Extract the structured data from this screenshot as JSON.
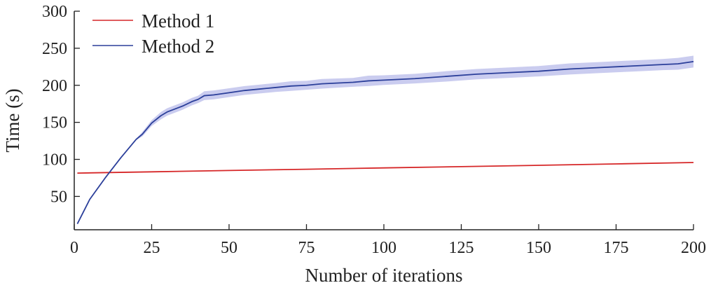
{
  "chart_data": {
    "type": "line",
    "title": "",
    "xlabel": "Number of iterations",
    "ylabel": "Time (s)",
    "xlim": [
      0,
      200
    ],
    "ylim": [
      5,
      300
    ],
    "xticks": [
      0,
      25,
      50,
      75,
      100,
      125,
      150,
      175,
      200
    ],
    "yticks": [
      50,
      100,
      150,
      200,
      250,
      300
    ],
    "grid": false,
    "legend_position": "top-left",
    "series": [
      {
        "name": "Method 1",
        "color": "#d62728",
        "x": [
          1,
          25,
          50,
          75,
          100,
          125,
          150,
          175,
          200
        ],
        "y": [
          81.5,
          83.2,
          85.0,
          86.7,
          88.5,
          90.2,
          92.0,
          93.9,
          95.8
        ]
      },
      {
        "name": "Method 2",
        "color": "#2b3f9a",
        "band_color": "#7b7fd6",
        "x": [
          1,
          5,
          10,
          15,
          20,
          22,
          25,
          28,
          30,
          35,
          38,
          40,
          42,
          45,
          50,
          55,
          60,
          65,
          70,
          75,
          80,
          90,
          95,
          100,
          110,
          120,
          130,
          140,
          150,
          160,
          170,
          180,
          190,
          195,
          200
        ],
        "y": [
          13,
          46,
          75,
          102,
          127,
          134,
          149,
          159,
          164,
          172,
          178,
          181,
          186,
          187,
          190,
          193,
          195,
          197,
          199,
          200,
          202,
          204,
          206,
          207,
          209,
          212,
          215,
          217,
          219,
          222,
          224,
          226,
          228,
          229,
          232
        ],
        "band_lower": [
          13,
          46,
          75,
          102,
          126,
          131,
          145,
          154,
          159,
          167,
          173,
          176,
          180,
          181,
          184,
          187,
          189,
          191,
          192.5,
          194,
          195.5,
          198,
          199,
          200.5,
          202.5,
          205,
          208,
          210,
          212,
          214.5,
          216.5,
          218.5,
          220.5,
          221,
          224
        ],
        "band_upper": [
          13,
          46,
          75,
          102,
          128,
          137,
          153,
          164,
          169,
          177,
          183,
          186,
          192,
          193,
          196,
          199,
          201,
          203,
          205.5,
          206,
          208.5,
          210,
          213,
          213.5,
          215.5,
          219,
          222,
          224,
          226,
          229.5,
          231.5,
          233.5,
          235.5,
          237,
          240
        ]
      }
    ]
  }
}
